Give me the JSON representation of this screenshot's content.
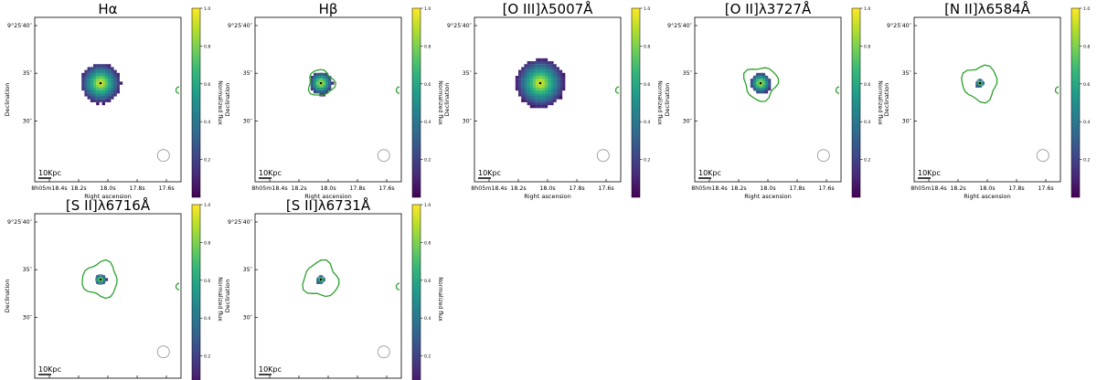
{
  "chart_data": {
    "type": "heatmap",
    "colormap": "viridis",
    "contour_color": "#2ca02c",
    "shared": {
      "xlabel": "Right ascension",
      "ylabel": "Declination",
      "colorbar_label": "Normalized flux",
      "x_ticks": [
        "8h05m18.4s",
        "18.2s",
        "18.0s",
        "17.8s",
        "17.6s"
      ],
      "y_ticks": [
        "9°25′40″",
        "35″",
        "30″"
      ],
      "scalebar_label": "10Kpc",
      "beam_marker": "circle"
    },
    "panels": [
      {
        "title": "Hα",
        "vmax": 1.0,
        "cbar_ticks": [
          "1.0",
          "0.8",
          "0.6",
          "0.4",
          "0.2"
        ],
        "emission_extent": 0.45,
        "contour_extent": 0,
        "core_value": 1.0
      },
      {
        "title": "Hβ",
        "vmax": 1.0,
        "cbar_ticks": [
          "1.0",
          "0.8",
          "0.6",
          "0.4",
          "0.2"
        ],
        "emission_extent": 0.26,
        "contour_extent": 0.28,
        "core_value": 1.0
      },
      {
        "title": "[O III]λ5007Å",
        "vmax": 1.0,
        "cbar_ticks": [
          "1.0",
          "0.8",
          "0.6",
          "0.4",
          "0.2"
        ],
        "emission_extent": 0.55,
        "contour_extent": 0,
        "core_value": 1.0
      },
      {
        "title": "[O II]λ3727Å",
        "vmax": 1.0,
        "cbar_ticks": [
          "1.0",
          "0.8",
          "0.6",
          "0.4",
          "0.2"
        ],
        "emission_extent": 0.24,
        "contour_extent": 0.36,
        "core_value": 1.0
      },
      {
        "title": "[N II]λ6584Å",
        "vmax": 1.0,
        "cbar_ticks": [
          "1.0",
          "0.8",
          "0.6",
          "0.4",
          "0.2"
        ],
        "emission_extent": 0.1,
        "contour_extent": 0.38,
        "core_value": 1.0
      },
      {
        "title": "[S II]λ6716Å",
        "vmax": 1.0,
        "cbar_ticks": [
          "1.0",
          "0.8",
          "0.6",
          "0.4",
          "0.2"
        ],
        "emission_extent": 0.13,
        "contour_extent": 0.38,
        "core_value": 1.0
      },
      {
        "title": "[S II]λ6731Å",
        "vmax": 1.0,
        "cbar_ticks": [
          "1.0",
          "0.8",
          "0.6",
          "0.4",
          "0.2"
        ],
        "emission_extent": 0.1,
        "contour_extent": 0.38,
        "core_value": 1.0
      }
    ]
  }
}
